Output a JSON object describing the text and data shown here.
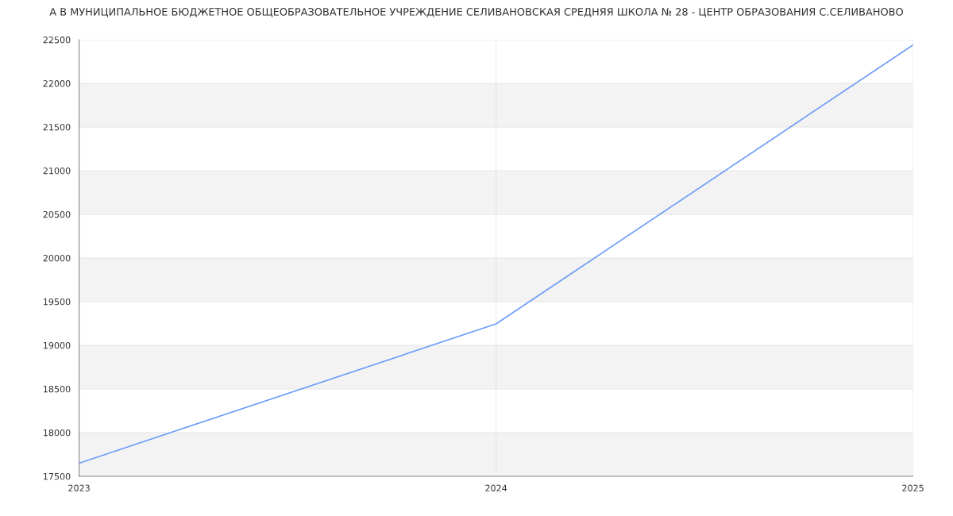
{
  "chart_data": {
    "type": "line",
    "title": "А В МУНИЦИПАЛЬНОЕ БЮДЖЕТНОЕ ОБЩЕОБРАЗОВАТЕЛЬНОЕ УЧРЕЖДЕНИЕ СЕЛИВАНОВСКАЯ СРЕДНЯЯ ШКОЛА № 28 - ЦЕНТР ОБРАЗОВАНИЯ С.СЕЛИВАНОВО",
    "x": [
      2023,
      2024,
      2025
    ],
    "series": [
      {
        "color": "#6d9cf5",
        "values": [
          17650,
          19245,
          22440
        ]
      }
    ],
    "xlim": [
      2023,
      2025
    ],
    "xticks": [
      2023,
      2024,
      2025
    ],
    "ylim": [
      17500,
      22500
    ],
    "yticks": [
      17500,
      18000,
      18500,
      19000,
      19500,
      20000,
      20500,
      21000,
      21500,
      22000,
      22500
    ],
    "grid": true
  }
}
